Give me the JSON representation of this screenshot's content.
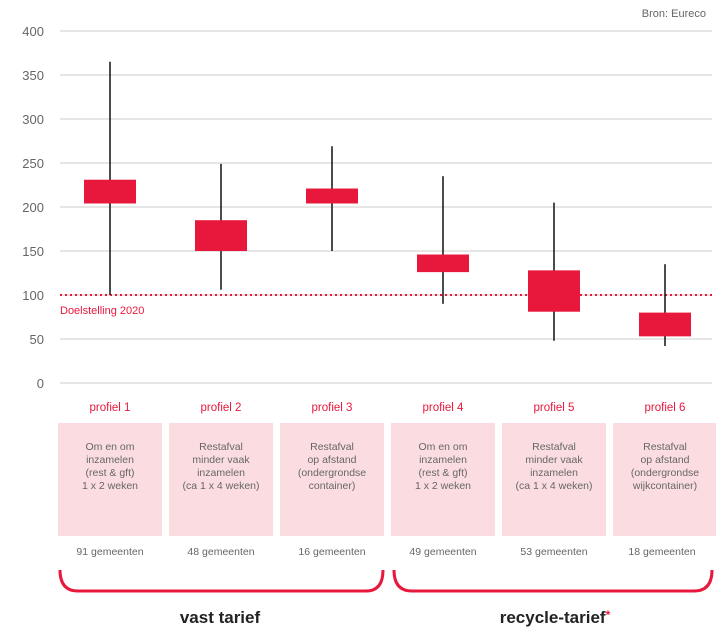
{
  "source": "Bron: Eureco",
  "chart_data": {
    "type": "candlestick",
    "ylim": [
      0,
      400
    ],
    "yticks": [
      "0",
      "50",
      "100",
      "150",
      "200",
      "250",
      "300",
      "350",
      "400"
    ],
    "target": {
      "value": 100,
      "label": "Doelstelling 2020"
    },
    "categories": [
      "profiel 1",
      "profiel 2",
      "profiel 3",
      "profiel 4",
      "profiel 5",
      "profiel 6"
    ],
    "boxes": [
      {
        "low": 100,
        "q1": 204,
        "q3": 231,
        "high": 365
      },
      {
        "low": 106,
        "q1": 150,
        "q3": 185,
        "high": 249
      },
      {
        "low": 150,
        "q1": 204,
        "q3": 221,
        "high": 269
      },
      {
        "low": 90,
        "q1": 126,
        "q3": 146,
        "high": 235
      },
      {
        "low": 48,
        "q1": 81,
        "q3": 128,
        "high": 205
      },
      {
        "low": 42,
        "q1": 53,
        "q3": 80,
        "high": 135
      }
    ]
  },
  "profiles": [
    {
      "label": "profiel 1",
      "desc": "Om en om\ninzamelen\n(rest & gft)\n1 x 2 weken",
      "count": "91 gemeenten"
    },
    {
      "label": "profiel 2",
      "desc": "Restafval\nminder vaak\ninzamelen\n(ca 1 x 4 weken)",
      "count": "48 gemeenten"
    },
    {
      "label": "profiel 3",
      "desc": "Restafval\nop afstand\n(ondergrondse\ncontainer)",
      "count": "16 gemeenten"
    },
    {
      "label": "profiel 4",
      "desc": "Om en om\ninzamelen\n(rest & gft)\n1 x 2 weken",
      "count": "49 gemeenten"
    },
    {
      "label": "profiel 5",
      "desc": "Restafval\nminder vaak\ninzamelen\n(ca 1 x 4 weken)",
      "count": "53 gemeenten"
    },
    {
      "label": "profiel 6",
      "desc": "Restafval\nop afstand\n(ondergrondse\nwijkcontainer)",
      "count": "18 gemeenten"
    }
  ],
  "groups": [
    {
      "label": "vast tarief",
      "star": ""
    },
    {
      "label": "recycle-tarief",
      "star": "*"
    }
  ],
  "colors": {
    "accent": "#e8173c",
    "box": "#ffe0e4",
    "grid": "#cccccc"
  }
}
